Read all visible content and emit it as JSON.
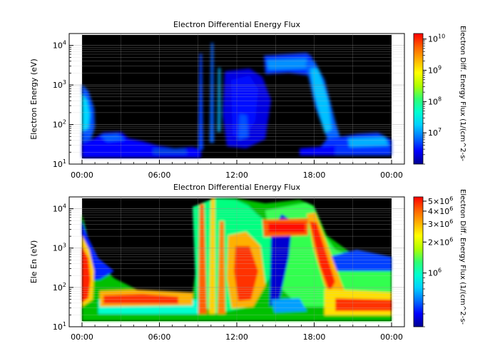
{
  "chart_data": [
    {
      "type": "heatmap",
      "title": "Electron Differential Energy Flux",
      "ylabel": "Electron Energy (eV)",
      "yscale": "log",
      "ylim": [
        10,
        20000
      ],
      "y_ticks": [
        {
          "base": "10",
          "exp": "1",
          "v": 10
        },
        {
          "base": "10",
          "exp": "2",
          "v": 100
        },
        {
          "base": "10",
          "exp": "3",
          "v": 1000
        },
        {
          "base": "10",
          "exp": "4",
          "v": 10000
        }
      ],
      "x_ticks": [
        "00:00",
        "06:00",
        "12:00",
        "18:00",
        "00:00"
      ],
      "x_tick_hours": [
        0,
        6,
        12,
        18,
        24
      ],
      "colorbar": {
        "label": "Electron Diff. Energy Flux (1/(cm^2-s-",
        "scale": "log",
        "range": [
          1000000,
          15000000000
        ],
        "ticks": [
          {
            "base": "10",
            "exp": "7",
            "v": 10000000
          },
          {
            "base": "10",
            "exp": "8",
            "v": 100000000
          },
          {
            "base": "10",
            "exp": "9",
            "v": 1000000000
          },
          {
            "base": "10",
            "exp": "10",
            "v": 10000000000
          }
        ]
      },
      "grid": true
    },
    {
      "type": "heatmap",
      "title": "Electron Differential Energy Flux",
      "ylabel": "Ele En (eV)",
      "yscale": "log",
      "ylim": [
        10,
        20000
      ],
      "y_ticks": [
        {
          "base": "10",
          "exp": "1",
          "v": 10
        },
        {
          "base": "10",
          "exp": "2",
          "v": 100
        },
        {
          "base": "10",
          "exp": "3",
          "v": 1000
        },
        {
          "base": "10",
          "exp": "4",
          "v": 10000
        }
      ],
      "x_ticks": [
        "00:00",
        "06:00",
        "12:00",
        "18:00",
        "00:00"
      ],
      "x_tick_hours": [
        0,
        6,
        12,
        18,
        24
      ],
      "colorbar": {
        "label": "Electron Diff. Energy Flux (1/(cm^2-s-",
        "scale": "log",
        "range": [
          300000,
          5500000
        ],
        "ticks": [
          {
            "text": "5×10",
            "exp": "6",
            "v": 5000000
          },
          {
            "text": "4×10",
            "exp": "6",
            "v": 4000000
          },
          {
            "text": "3×10",
            "exp": "6",
            "v": 3000000
          },
          {
            "text": "2×10",
            "exp": "6",
            "v": 2000000
          },
          {
            "text": "10",
            "exp": "6",
            "v": 1000000
          }
        ]
      },
      "grid": true
    }
  ],
  "colors": {
    "background": "#000000",
    "colormap": [
      "#000090",
      "#0000ff",
      "#0070ff",
      "#00d0ff",
      "#00ffd0",
      "#30ff70",
      "#b0ff00",
      "#ffff00",
      "#ffb000",
      "#ff6000",
      "#ff0000"
    ]
  }
}
